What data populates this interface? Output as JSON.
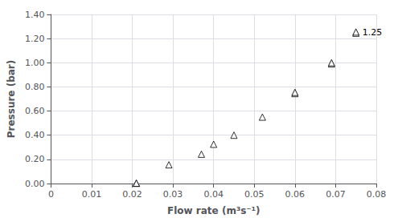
{
  "chart_data": {
    "type": "scatter",
    "x": [
      0.021,
      0.021,
      0.029,
      0.037,
      0.04,
      0.045,
      0.052,
      0.06,
      0.06,
      0.069,
      0.069,
      0.075,
      0.075
    ],
    "values": [
      0.002,
      0.003,
      0.155,
      0.243,
      0.325,
      0.4,
      0.55,
      0.745,
      0.755,
      0.99,
      1.0,
      1.245,
      1.255
    ],
    "xlabel": "Flow rate (m³s⁻¹)",
    "ylabel": "Pressure (bar)",
    "xlim": [
      0,
      0.08
    ],
    "ylim": [
      0,
      1.4
    ],
    "xticks": [
      0,
      0.01,
      0.02,
      0.03,
      0.04,
      0.05,
      0.06,
      0.07,
      0.08
    ],
    "yticks": [
      {
        "value": 0.0,
        "label": "0.00"
      },
      {
        "value": 0.2,
        "label": "0.20"
      },
      {
        "value": 0.4,
        "label": "0.40"
      },
      {
        "value": 0.6,
        "label": "0.60"
      },
      {
        "value": 0.8,
        "label": "0.80"
      },
      {
        "value": 1.0,
        "label": "1.00"
      },
      {
        "value": 1.2,
        "label": "1.20"
      },
      {
        "value": 1.4,
        "label": "1.40"
      }
    ],
    "grid": true,
    "marker": "triangle",
    "color": "#000000",
    "annotations": [
      {
        "text": "1.25",
        "x": 0.075,
        "y": 1.25
      }
    ]
  }
}
